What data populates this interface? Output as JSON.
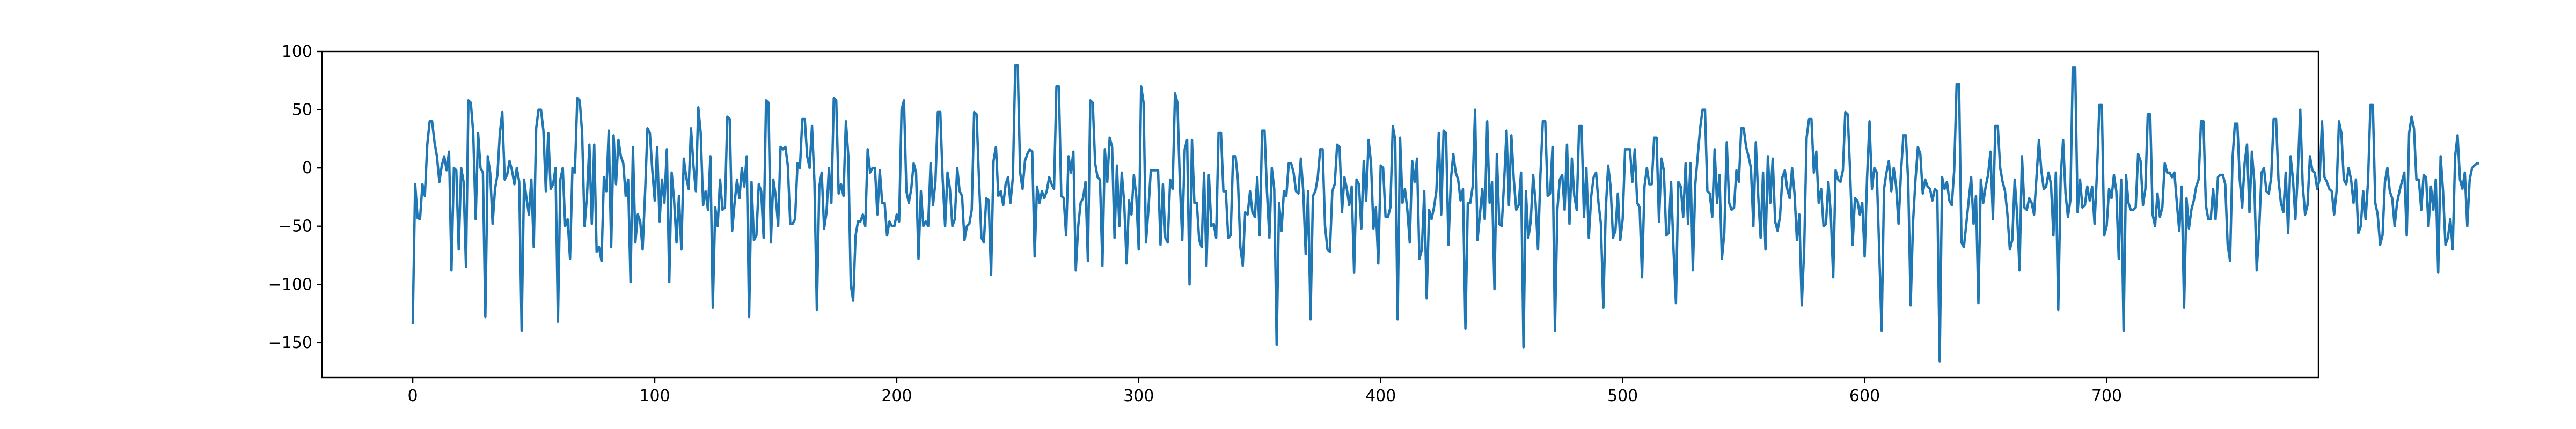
{
  "chart_data": {
    "type": "line",
    "title": "",
    "xlabel": "",
    "ylabel": "",
    "xlim": [
      -37.5,
      787.5
    ],
    "ylim": [
      -180,
      100
    ],
    "grid": false,
    "legend": "none",
    "x_ticks": [
      0,
      100,
      200,
      300,
      400,
      500,
      600,
      700
    ],
    "y_ticks": [
      -150,
      -100,
      -50,
      0,
      50,
      100
    ],
    "series": [
      {
        "color": "#1f77b4",
        "x_start": 0,
        "x_step": 1,
        "values": [
          -134,
          -14,
          -43,
          -44,
          -14,
          -24,
          20,
          40,
          40,
          22,
          10,
          -12,
          2,
          10,
          -2,
          14,
          -88,
          0,
          -2,
          -70,
          0,
          -12,
          -85,
          58,
          56,
          30,
          -44,
          30,
          0,
          -4,
          -128,
          10,
          -4,
          -48,
          -18,
          -6,
          30,
          48,
          -10,
          -6,
          6,
          -2,
          -14,
          0,
          -12,
          -140,
          -10,
          -26,
          -40,
          -10,
          -68,
          34,
          50,
          50,
          32,
          -20,
          30,
          -18,
          -14,
          0,
          -132,
          -10,
          0,
          -50,
          -44,
          -78,
          0,
          -4,
          60,
          58,
          30,
          -50,
          -24,
          20,
          -48,
          20,
          -72,
          -68,
          -80,
          -8,
          -20,
          32,
          -68,
          28,
          -14,
          24,
          10,
          4,
          -24,
          -10,
          -98,
          18,
          -64,
          -40,
          -46,
          -70,
          -22,
          34,
          30,
          -2,
          -28,
          18,
          -46,
          -10,
          -30,
          16,
          -98,
          -4,
          -28,
          -64,
          -24,
          -70,
          8,
          -8,
          -18,
          34,
          2,
          -20,
          52,
          30,
          -32,
          -20,
          -36,
          10,
          -120,
          -34,
          -50,
          -10,
          -36,
          -34,
          44,
          42,
          -54,
          -30,
          -10,
          -26,
          0,
          -16,
          10,
          -128,
          -12,
          -62,
          -58,
          -14,
          -20,
          -60,
          58,
          56,
          -64,
          -10,
          -24,
          -50,
          18,
          16,
          18,
          2,
          -48,
          -48,
          -44,
          4,
          0,
          42,
          42,
          10,
          0,
          36,
          -12,
          -122,
          -16,
          -4,
          -52,
          -38,
          0,
          -30,
          60,
          58,
          -22,
          -14,
          -24,
          40,
          10,
          -100,
          -114,
          -58,
          -46,
          -46,
          -40,
          -50,
          16,
          -4,
          0,
          0,
          -40,
          -2,
          -30,
          -30,
          -58,
          -46,
          -50,
          -50,
          -40,
          -46,
          50,
          58,
          -20,
          -30,
          -18,
          4,
          -4,
          -78,
          -20,
          -50,
          -46,
          -50,
          4,
          -32,
          -12,
          48,
          48,
          -10,
          -50,
          -4,
          -18,
          -50,
          -44,
          0,
          -20,
          -24,
          -62,
          -50,
          -48,
          -36,
          48,
          46,
          -10,
          -60,
          -64,
          -26,
          -28,
          -92,
          6,
          18,
          -24,
          -20,
          -32,
          -14,
          -8,
          -30,
          -8,
          88,
          88,
          -4,
          -18,
          6,
          12,
          16,
          14,
          -76,
          -16,
          -30,
          -20,
          -26,
          -20,
          -8,
          -14,
          -18,
          70,
          70,
          -24,
          -26,
          -58,
          10,
          -4,
          14,
          -88,
          -50,
          -30,
          -26,
          -12,
          -80,
          58,
          56,
          4,
          -8,
          -10,
          -84,
          16,
          -12,
          26,
          18,
          -60,
          2,
          -50,
          -4,
          -30,
          -82,
          -28,
          -40,
          -6,
          -24,
          -70,
          70,
          56,
          -64,
          -36,
          -2,
          -2,
          -2,
          -2,
          -66,
          -14,
          -60,
          -64,
          -10,
          -18,
          64,
          56,
          -12,
          -62,
          16,
          24,
          -100,
          24,
          -30,
          -30,
          -62,
          -68,
          -4,
          -84,
          -6,
          -50,
          -48,
          -60,
          30,
          30,
          -20,
          -20,
          -60,
          -58,
          10,
          10,
          -10,
          -68,
          -84,
          -38,
          -40,
          -20,
          -38,
          -42,
          -8,
          -58,
          32,
          32,
          -20,
          -60,
          0,
          -18,
          -152,
          -30,
          -54,
          -20,
          -24,
          4,
          4,
          -4,
          -20,
          -22,
          8,
          -20,
          -74,
          -20,
          -130,
          -24,
          -20,
          -8,
          16,
          16,
          -50,
          -70,
          -72,
          -20,
          -14,
          20,
          18,
          -38,
          -8,
          -18,
          -32,
          -16,
          -90,
          -10,
          -14,
          -52,
          6,
          -28,
          24,
          4,
          -52,
          -34,
          -82,
          2,
          0,
          -42,
          -42,
          -34,
          36,
          24,
          -130,
          26,
          -30,
          -18,
          -36,
          -64,
          6,
          -12,
          8,
          -78,
          -70,
          -20,
          -112,
          -36,
          -44,
          -34,
          -20,
          30,
          -40,
          32,
          30,
          -66,
          -10,
          12,
          -4,
          -10,
          -28,
          -18,
          -138,
          -30,
          -30,
          -16,
          50,
          -62,
          -40,
          -18,
          -44,
          40,
          -30,
          -12,
          -104,
          12,
          -48,
          -50,
          -12,
          32,
          -32,
          28,
          -10,
          -36,
          -32,
          -4,
          -154,
          -20,
          -60,
          -46,
          -6,
          -30,
          -70,
          -6,
          40,
          40,
          -24,
          -22,
          18,
          -140,
          -36,
          -10,
          -6,
          -36,
          20,
          -48,
          8,
          -24,
          -36,
          36,
          36,
          -42,
          0,
          -60,
          -24,
          -8,
          -4,
          -30,
          -48,
          -120,
          -36,
          2,
          -16,
          -60,
          -54,
          -22,
          -62,
          -44,
          16,
          16,
          16,
          -12,
          16,
          -30,
          -34,
          -94,
          -16,
          0,
          -14,
          -14,
          26,
          26,
          -46,
          8,
          -2,
          -58,
          -56,
          -12,
          -70,
          -116,
          -12,
          -16,
          -42,
          4,
          -48,
          4,
          -88,
          -14,
          10,
          34,
          50,
          50,
          -20,
          -22,
          -42,
          16,
          -30,
          -6,
          -78,
          -56,
          22,
          -30,
          -36,
          -34,
          -2,
          -12,
          34,
          34,
          18,
          10,
          0,
          -50,
          22,
          -24,
          -60,
          -4,
          -70,
          10,
          -30,
          8,
          -46,
          -54,
          -42,
          -8,
          -2,
          -18,
          -26,
          0,
          -22,
          -62,
          -40,
          -118,
          -70,
          26,
          42,
          42,
          -4,
          14,
          -30,
          -18,
          -50,
          -48,
          -12,
          -40,
          -94,
          -2,
          -10,
          -12,
          -2,
          48,
          46,
          -4,
          -66,
          -26,
          -28,
          -40,
          -30,
          -76,
          -8,
          40,
          -18,
          0,
          -4,
          -70,
          -140,
          -18,
          -4,
          6,
          -20,
          0,
          -16,
          -48,
          -4,
          28,
          28,
          -12,
          -118,
          -46,
          -10,
          18,
          12,
          -22,
          -10,
          -16,
          -18,
          -28,
          -18,
          -20,
          -166,
          -8,
          -18,
          -12,
          -28,
          -32,
          -2,
          72,
          72,
          -64,
          -68,
          -48,
          -28,
          -8,
          -48,
          -24,
          -116,
          -10,
          -30,
          -16,
          -6,
          14,
          -44,
          36,
          36,
          0,
          -12,
          -20,
          -40,
          -70,
          -62,
          -10,
          -40,
          -88,
          10,
          -34,
          -36,
          -26,
          -30,
          -40,
          -8,
          24,
          -2,
          -18,
          -16,
          -4,
          -14,
          -58,
          -4,
          -122,
          -8,
          24,
          -22,
          -42,
          -28,
          86,
          86,
          -38,
          -10,
          -34,
          -32,
          -16,
          -28,
          -16,
          -48,
          -4,
          54,
          54,
          -58,
          -50,
          -18,
          -26,
          -6,
          -20,
          -78,
          -10,
          -140,
          -6,
          -30,
          -36,
          -36,
          -34,
          12,
          6,
          -32,
          -18,
          46,
          46,
          -40,
          -50,
          -22,
          -42,
          -34,
          4,
          -4,
          -4,
          -8,
          -4,
          -30,
          -54,
          -16,
          -120,
          -26,
          -52,
          -36,
          -28,
          -16,
          -10,
          40,
          40,
          -32,
          -44,
          -44,
          -18,
          -44,
          -8,
          -6,
          -6,
          -14,
          -66,
          -80,
          8,
          38,
          38,
          -10,
          -34,
          4,
          20,
          -38,
          14,
          -12,
          -88,
          -54,
          -4,
          0,
          -20,
          -22,
          -8,
          42,
          42,
          -10,
          -30,
          -38,
          -4,
          -56,
          10,
          -10,
          -44,
          -4,
          50,
          -14,
          -40,
          -32,
          10,
          -2,
          -4,
          -18,
          -10,
          40,
          -8,
          -12,
          -18,
          -20,
          -40,
          -20,
          40,
          30,
          -10,
          -14,
          0,
          -10,
          -30,
          -10,
          -56,
          -50,
          -20,
          -44,
          -12,
          54,
          54,
          -30,
          -40,
          -66,
          -58,
          -12,
          0,
          -20,
          -26,
          -50,
          -30,
          -20,
          -12,
          -4,
          -58,
          30,
          44,
          34,
          -10,
          -10,
          -36,
          -6,
          -8,
          -50,
          -16,
          -36,
          -10,
          -90,
          10,
          -20,
          -66,
          -60,
          -44,
          -70,
          10,
          28,
          -10,
          -18,
          -4,
          -50,
          -10,
          0,
          2,
          4,
          4
        ]
      }
    ]
  }
}
